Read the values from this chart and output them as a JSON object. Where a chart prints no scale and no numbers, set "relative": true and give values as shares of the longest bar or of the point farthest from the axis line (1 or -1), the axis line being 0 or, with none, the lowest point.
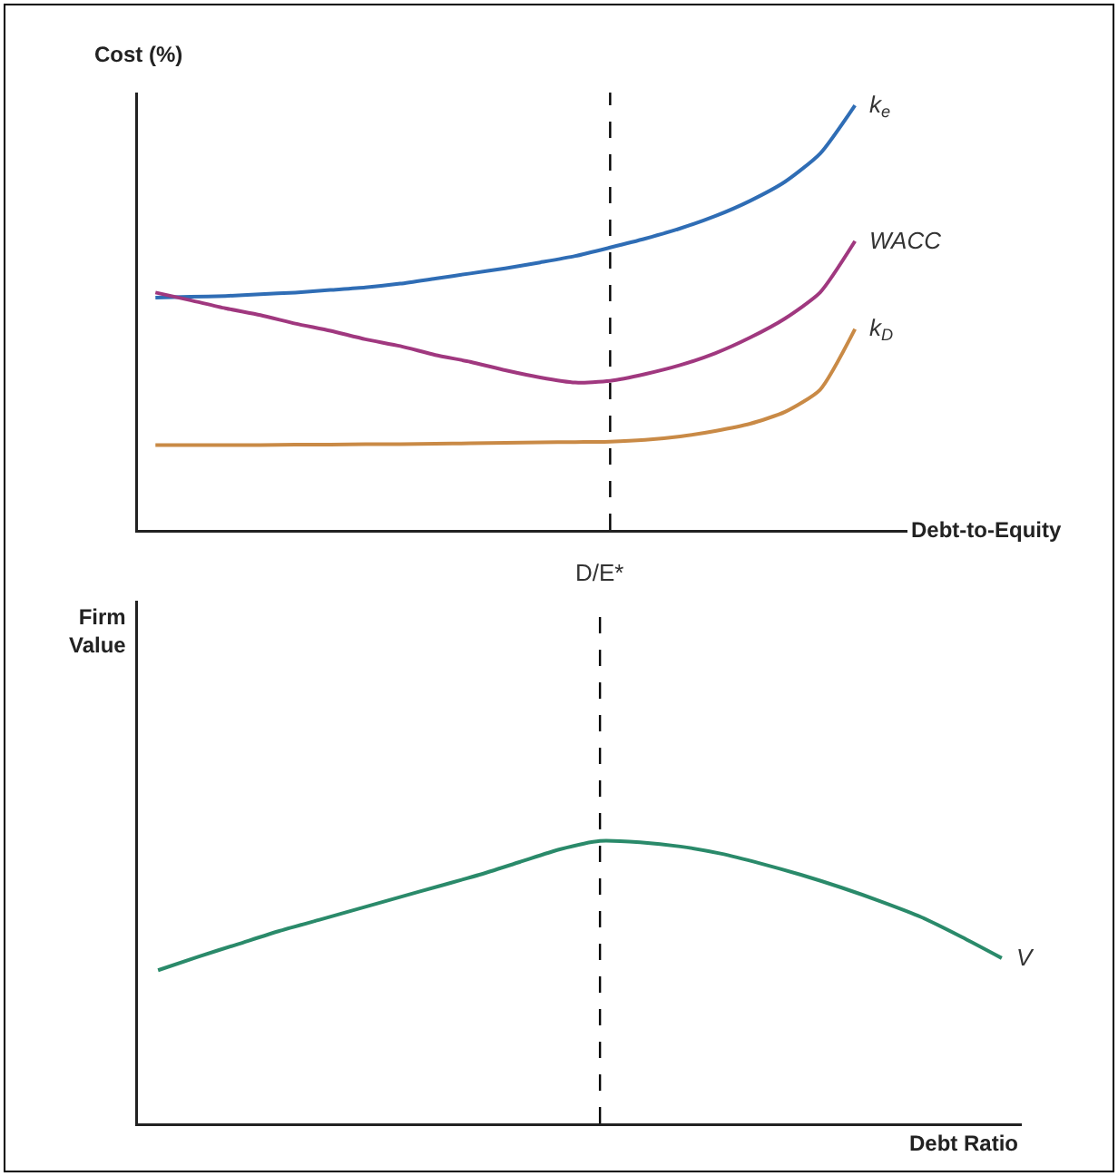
{
  "chart_data": [
    {
      "type": "line",
      "relative": true,
      "ylabel": "Cost (%)",
      "xlabel": "Debt-to-Equity",
      "categories": [
        null,
        null,
        null,
        null,
        null,
        null,
        null,
        null,
        null,
        null,
        null,
        null,
        null,
        null,
        null,
        null,
        null,
        null,
        null,
        null,
        null,
        null
      ],
      "series": [
        {
          "name": "k$_{e}$",
          "color": "#2f6db5",
          "values": [
            0.547,
            0.549,
            0.551,
            0.555,
            0.559,
            0.565,
            0.571,
            0.58,
            0.592,
            0.604,
            0.616,
            0.63,
            0.645,
            0.665,
            0.686,
            0.71,
            0.739,
            0.775,
            0.82,
            0.886,
            1.0,
            null
          ]
        },
        {
          "name": "WACC",
          "color": "#a0387f",
          "values": [
            0.559,
            0.541,
            0.522,
            0.506,
            0.486,
            0.469,
            0.449,
            0.433,
            0.412,
            0.396,
            0.376,
            0.359,
            0.347,
            0.351,
            0.367,
            0.388,
            0.416,
            0.453,
            0.498,
            0.559,
            0.68,
            null
          ]
        },
        {
          "name": "k$_{D}$",
          "color": "#c98a46",
          "values": [
            0.2,
            0.2,
            0.2,
            0.2,
            0.201,
            0.201,
            0.202,
            0.202,
            0.203,
            0.204,
            0.205,
            0.206,
            0.207,
            0.208,
            0.212,
            0.22,
            0.233,
            0.25,
            0.278,
            0.33,
            0.473,
            null
          ]
        }
      ]
    },
    {
      "type": "line",
      "relative": true,
      "ylabel": "Firm Value",
      "xlabel": "Debt Ratio",
      "annotations": [
        "D/E*"
      ],
      "categories": [
        null,
        null,
        null,
        null,
        null,
        null,
        null,
        null,
        null,
        null,
        null,
        null,
        null,
        null,
        null,
        null,
        null,
        null,
        null,
        null,
        null,
        null
      ],
      "series": [
        {
          "name": "V",
          "color": "#2a8a6a",
          "values": [
            0.542,
            0.59,
            0.635,
            0.68,
            0.72,
            0.76,
            0.8,
            0.84,
            0.88,
            0.925,
            0.97,
            1.0,
            0.995,
            0.98,
            0.955,
            0.92,
            0.88,
            0.835,
            0.785,
            0.73,
            0.66,
            0.585
          ]
        }
      ]
    }
  ]
}
